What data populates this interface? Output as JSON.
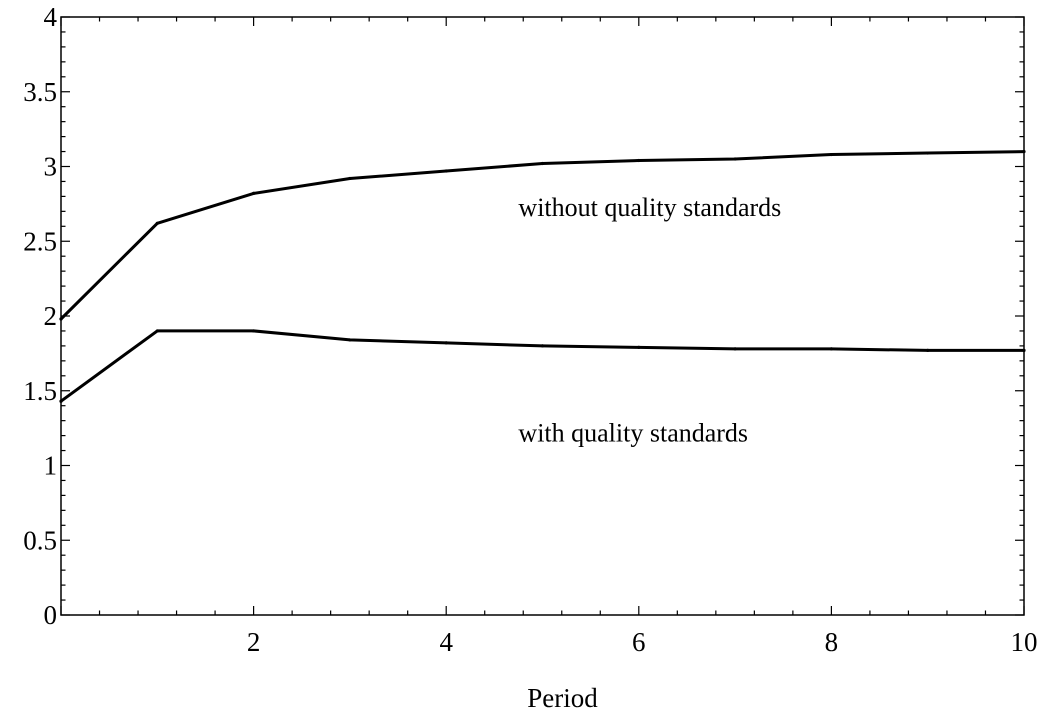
{
  "chart_data": {
    "type": "line",
    "title": "",
    "xlabel": "Period",
    "ylabel": "",
    "xlim": [
      0,
      10
    ],
    "ylim": [
      0,
      4
    ],
    "x_ticks": [
      "2",
      "4",
      "6",
      "8",
      "10"
    ],
    "y_ticks": [
      "0",
      "0.5",
      "1",
      "1.5",
      "2",
      "2.5",
      "3",
      "3.5",
      "4"
    ],
    "grid": false,
    "legend": "none",
    "series": [
      {
        "x": [
          0,
          1,
          2,
          3,
          4,
          5,
          6,
          7,
          8,
          9,
          10
        ],
        "values": [
          1.98,
          2.62,
          2.82,
          2.92,
          2.97,
          3.02,
          3.04,
          3.05,
          3.08,
          3.09,
          3.1
        ]
      },
      {
        "x": [
          0,
          1,
          2,
          3,
          4,
          5,
          6,
          7,
          8,
          9,
          10
        ],
        "values": [
          1.43,
          1.9,
          1.9,
          1.84,
          1.82,
          1.8,
          1.79,
          1.78,
          1.78,
          1.77,
          1.77
        ]
      }
    ],
    "annotations": [
      {
        "text": "without quality standards",
        "x": 4.75,
        "y": 2.73
      },
      {
        "text": "with quality standards",
        "x": 4.75,
        "y": 1.22
      }
    ],
    "line_color": "#000000"
  }
}
